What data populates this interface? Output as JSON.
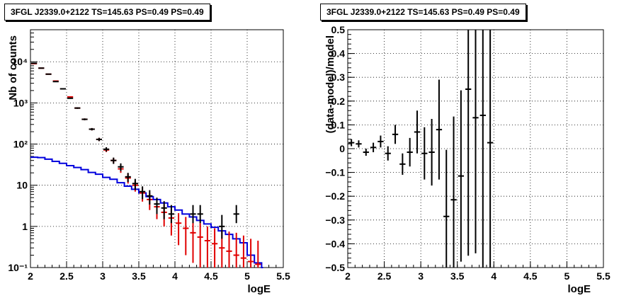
{
  "chart_data": [
    {
      "type": "histogram-errorbars",
      "title": "3FGL J2339.0+2122 TS=145.63 PS=0.49 PS=0.49",
      "xlabel": "logE",
      "ylabel": "Nb of counts",
      "xlim": [
        2,
        5.5
      ],
      "ylim": [
        0.1,
        60000
      ],
      "yscale": "log",
      "grid": true,
      "x_ticks": [
        "2",
        "2.5",
        "3",
        "3.5",
        "4",
        "4.5",
        "5",
        "5.5"
      ],
      "y_ticks": [
        {
          "value": 0.1,
          "label": "10⁻¹"
        },
        {
          "value": 1,
          "label": "1"
        },
        {
          "value": 10,
          "label": "10"
        },
        {
          "value": 100,
          "label": "10²"
        },
        {
          "value": 1000,
          "label": "10³"
        },
        {
          "value": 10000,
          "label": "10⁴"
        }
      ],
      "colors": {
        "data": "#000000",
        "model": "#e00000",
        "background": "#0000dd"
      },
      "series": [
        {
          "role": "data",
          "x": [
            2.05,
            2.15,
            2.25,
            2.35,
            2.45,
            2.55,
            2.65,
            2.75,
            2.85,
            2.95,
            3.05,
            3.15,
            3.25,
            3.35,
            3.45,
            3.55,
            3.65,
            3.75,
            3.85,
            3.95,
            4.25,
            4.35,
            4.65,
            4.85
          ],
          "y": [
            9200,
            7000,
            5000,
            3300,
            2200,
            1300,
            750,
            400,
            230,
            130,
            75,
            40,
            28,
            16,
            11,
            7,
            5.5,
            3.5,
            2.8,
            2,
            2,
            2,
            1,
            2
          ],
          "yerr_low": [
            9100,
            6900,
            4920,
            3240,
            2150,
            1260,
            720,
            380,
            215,
            118,
            66,
            33,
            22,
            12,
            7.7,
            4.6,
            3.4,
            2,
            1.5,
            1.2,
            1.2,
            1.2,
            0.5,
            1.2
          ],
          "yerr_high": [
            9300,
            7100,
            5080,
            3360,
            2250,
            1340,
            780,
            420,
            245,
            142,
            84,
            47,
            34,
            20,
            14.3,
            9.4,
            7.6,
            5,
            4.1,
            3.3,
            3.3,
            3.3,
            1.9,
            3.3
          ]
        },
        {
          "role": "model",
          "x": [
            2.05,
            2.15,
            2.25,
            2.35,
            2.45,
            2.55,
            2.65,
            2.75,
            2.85,
            2.95,
            3.05,
            3.15,
            3.25,
            3.35,
            3.45,
            3.55,
            3.65,
            3.75,
            3.85,
            3.95,
            4.05,
            4.15,
            4.25,
            4.35,
            4.45,
            4.55,
            4.65,
            4.75,
            4.85,
            4.95,
            5.05,
            5.15
          ],
          "y": [
            9000,
            7000,
            5000,
            3400,
            2200,
            1400,
            750,
            400,
            230,
            130,
            72,
            40,
            25,
            15,
            10,
            6.5,
            4.5,
            3,
            2.2,
            1.6,
            1.2,
            0.9,
            0.7,
            0.55,
            0.45,
            0.38,
            0.3,
            0.25,
            0.2,
            0.17,
            0.14,
            0.12
          ],
          "yerr_low": [
            8900,
            6900,
            4930,
            3340,
            2150,
            1360,
            720,
            380,
            215,
            118,
            64,
            34,
            20,
            11,
            7,
            4,
            2.5,
            1.5,
            1,
            0.6,
            0.35,
            0.2,
            0.13,
            0.1,
            0.1,
            0.1,
            0.1,
            0.1,
            0.1,
            0.1,
            0.1,
            0.1
          ],
          "yerr_high": [
            9100,
            7100,
            5070,
            3460,
            2250,
            1440,
            780,
            420,
            245,
            142,
            80,
            46,
            30,
            19,
            13,
            9,
            6.5,
            4.5,
            3.4,
            2.6,
            2.1,
            1.7,
            1.4,
            1.2,
            1.0,
            0.9,
            0.8,
            0.75,
            0.7,
            0.6,
            0.5,
            0.45
          ]
        },
        {
          "role": "background",
          "x": [
            2.05,
            2.15,
            2.25,
            2.35,
            2.45,
            2.55,
            2.65,
            2.75,
            2.85,
            2.95,
            3.05,
            3.15,
            3.25,
            3.35,
            3.45,
            3.55,
            3.65,
            3.75,
            3.85,
            3.95,
            4.05,
            4.15,
            4.25,
            4.35,
            4.45,
            4.55,
            4.65,
            4.75,
            4.85,
            4.95,
            5.05,
            5.15
          ],
          "y": [
            48,
            47,
            43,
            38,
            34,
            30,
            27,
            24,
            20.5,
            18.5,
            15.5,
            14,
            11.5,
            9.5,
            8,
            6.5,
            5.3,
            4.5,
            3.7,
            3,
            2.5,
            2,
            1.7,
            1.4,
            1.15,
            0.95,
            0.78,
            0.64,
            0.5,
            0.4,
            0.2,
            0.13
          ]
        }
      ]
    },
    {
      "type": "errorbars",
      "title": "3FGL J2339.0+2122 TS=145.63 PS=0.49 PS=0.49",
      "xlabel": "logE",
      "ylabel": "(data-model)/model",
      "xlim": [
        2,
        5.5
      ],
      "ylim": [
        -0.5,
        0.5
      ],
      "grid": true,
      "x_ticks": [
        "2",
        "2.5",
        "3",
        "3.5",
        "4",
        "4.5",
        "5",
        "5.5"
      ],
      "y_ticks": [
        "−0.5",
        "−0.4",
        "−0.3",
        "−0.2",
        "−0.1",
        "0",
        "0.1",
        "0.2",
        "0.3",
        "0.4",
        "0.5"
      ],
      "series": [
        {
          "role": "residual",
          "x": [
            2.05,
            2.15,
            2.25,
            2.35,
            2.45,
            2.55,
            2.65,
            2.75,
            2.85,
            2.95,
            3.05,
            3.15,
            3.25,
            3.35,
            3.45,
            3.55,
            3.65,
            3.75,
            3.85,
            3.95
          ],
          "y": [
            0.025,
            0.02,
            -0.015,
            0.005,
            0.03,
            -0.02,
            0.06,
            -0.065,
            -0.015,
            0.07,
            -0.02,
            -0.015,
            0.08,
            -0.285,
            -0.215,
            -0.115,
            0.25,
            0.13,
            0.14,
            0.025
          ],
          "yerr": [
            0.015,
            0.015,
            0.015,
            0.02,
            0.025,
            0.03,
            0.04,
            0.045,
            0.06,
            0.09,
            0.11,
            0.14,
            0.21,
            0.28,
            0.35,
            0.36,
            0.7,
            0.57,
            0.7,
            0.9
          ]
        }
      ]
    }
  ]
}
